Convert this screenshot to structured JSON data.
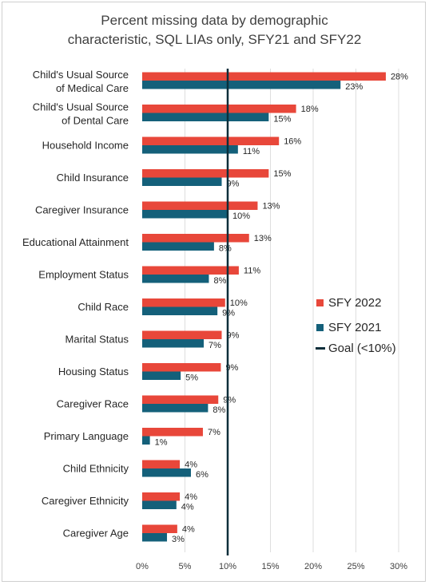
{
  "colors": {
    "sfy2022": "#E8473A",
    "sfy2021": "#14607A",
    "goal": "#0B2E3A",
    "grid": "#dedede"
  },
  "chart_data": {
    "type": "bar",
    "orientation": "horizontal",
    "title": "Percent missing data by demographic\ncharacteristic, SQL LIAs only, SFY21 and SFY22",
    "categories": [
      "Child's Usual Source\nof Medical Care",
      "Child's Usual Source\nof Dental Care",
      "Household Income",
      "Child Insurance",
      "Caregiver Insurance",
      "Educational Attainment",
      "Employment Status",
      "Child Race",
      "Marital Status",
      "Housing Status",
      "Caregiver Race",
      "Primary Language",
      "Child Ethnicity",
      "Caregiver Ethnicity",
      "Caregiver Age"
    ],
    "series": [
      {
        "name": "SFY 2022",
        "values": [
          28.5,
          18,
          16,
          14.8,
          13.5,
          12.5,
          11.3,
          9.7,
          9.3,
          9.2,
          8.9,
          7.1,
          4.4,
          4.4,
          4.1
        ]
      },
      {
        "name": "SFY 2021",
        "values": [
          23.2,
          14.8,
          11.2,
          9.3,
          10,
          8.4,
          7.8,
          8.8,
          7.2,
          4.5,
          7.7,
          0.9,
          5.7,
          4,
          2.9
        ]
      }
    ],
    "data_labels": [
      [
        "28%",
        "18%",
        "16%",
        "15%",
        "13%",
        "13%",
        "11%",
        "10%",
        "9%",
        "9%",
        "9%",
        "7%",
        "4%",
        "4%",
        "4%"
      ],
      [
        "23%",
        "15%",
        "11%",
        "9%",
        "10%",
        "8%",
        "8%",
        "9%",
        "7%",
        "5%",
        "8%",
        "1%",
        "6%",
        "4%",
        "3%"
      ]
    ],
    "goal": {
      "name": "Goal (<10%)",
      "value": 10
    },
    "xlim": [
      0,
      30
    ],
    "xticks": [
      0,
      5,
      10,
      15,
      20,
      25,
      30
    ],
    "xtick_labels": [
      "0%",
      "5%",
      "10%",
      "15%",
      "20%",
      "25%",
      "30%"
    ],
    "legend": [
      "SFY 2022",
      "SFY 2021",
      "Goal (<10%)"
    ],
    "legend_position": "right",
    "grid": true
  }
}
